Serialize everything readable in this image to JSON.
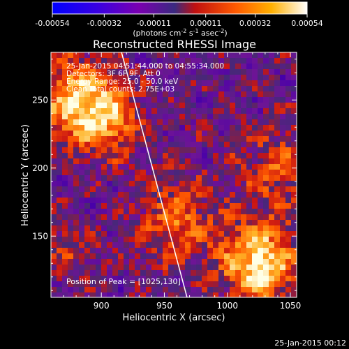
{
  "chart_data": {
    "type": "heatmap",
    "title": "Reconstructed RHESSI Image",
    "xlabel": "Heliocentric X (arcsec)",
    "ylabel": "Heliocentric Y (arcsec)",
    "xlim": [
      860,
      1055
    ],
    "ylim": [
      105,
      285
    ],
    "xticks": [
      "900",
      "950",
      "1000",
      "1050"
    ],
    "xtick_values": [
      900,
      950,
      1000,
      1050
    ],
    "yticks": [
      "150",
      "200",
      "250"
    ],
    "ytick_values": [
      150,
      200,
      250
    ],
    "colorbar": {
      "ticks": [
        "-0.00054",
        "-0.00032",
        "-0.00011",
        "0.00011",
        "0.00032",
        "0.00054"
      ],
      "tick_values": [
        -0.00054,
        -0.00032,
        -0.00011,
        0.00011,
        0.00032,
        0.00054
      ],
      "range": [
        -0.00054,
        0.00054
      ],
      "units_base": "(photons cm",
      "units_exp1": "-2",
      "units_mid": " s",
      "units_exp2": "-1",
      "units_mid2": " asec",
      "units_exp3": "-2",
      "units_end": ")"
    },
    "annotations": [
      "25-Jan-2015 04:51:44.000 to 04:55:34.000",
      "Detectors: 3F 6F 9F, Att 0",
      "Energy Range: 25.0 - 50.0 keV",
      "Clean     Total counts: 2.75E+03"
    ],
    "peak_label": "Position of Peak = [1025,130]",
    "peak_position": [
      1025,
      130
    ],
    "limb_line": [
      [
        916,
        285
      ],
      [
        968,
        105
      ]
    ],
    "colormap": [
      "#0000ff",
      "#5000c0",
      "#8000a0",
      "#4a2a8a",
      "#e01818",
      "#ff8000",
      "#ffc040",
      "#ffffff"
    ]
  },
  "footer_timestamp": "25-Jan-2015 00:12"
}
